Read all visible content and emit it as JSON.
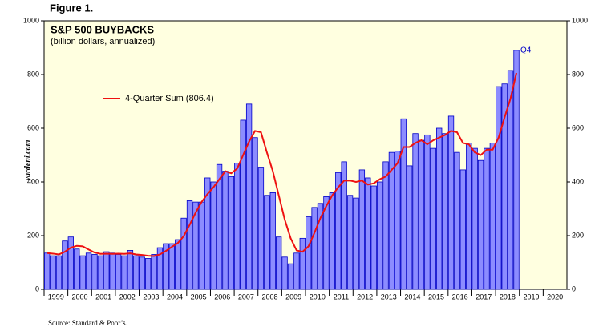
{
  "figure_label": "Figure 1.",
  "source": "Source: Standard & Poor’s.",
  "watermark": "yardeni.com",
  "chart_data": {
    "type": "bar",
    "title": "S&P 500 BUYBACKS",
    "subtitle": "(billion dollars, annualized)",
    "annotation": "Q4",
    "categories": [
      null,
      null,
      null,
      null,
      null,
      null,
      null,
      null,
      null,
      null,
      null,
      null,
      null,
      null,
      null,
      null,
      null,
      null,
      null,
      null,
      null,
      null,
      null,
      null,
      null,
      null,
      null,
      null,
      null,
      null,
      null,
      null,
      null,
      null,
      null,
      null,
      null,
      null,
      null,
      null,
      null,
      null,
      null,
      null,
      null,
      null,
      null,
      null,
      null,
      null,
      null,
      null,
      null,
      null,
      null,
      null,
      null,
      null,
      null,
      null,
      null,
      null,
      null,
      null,
      null,
      null,
      null,
      null,
      null,
      null,
      null,
      null,
      null,
      null,
      null,
      null,
      null,
      null,
      null,
      null
    ],
    "series": [
      {
        "name": null,
        "kind": "bar",
        "color": "#8c8cff",
        "edge": "#0000c8",
        "values": [
          135,
          125,
          125,
          180,
          195,
          150,
          125,
          135,
          130,
          125,
          140,
          135,
          130,
          125,
          145,
          125,
          120,
          115,
          130,
          155,
          170,
          170,
          185,
          265,
          330,
          325,
          325,
          415,
          400,
          465,
          440,
          420,
          470,
          630,
          690,
          565,
          455,
          350,
          360,
          195,
          120,
          95,
          135,
          190,
          270,
          305,
          320,
          345,
          360,
          435,
          475,
          350,
          340,
          445,
          415,
          385,
          400,
          475,
          510,
          515,
          635,
          460,
          580,
          555,
          575,
          525,
          600,
          580,
          645,
          510,
          445,
          545,
          525,
          480,
          525,
          545,
          755,
          765,
          815,
          890
        ]
      },
      {
        "name": "4-Quarter Sum (806.4)",
        "kind": "line",
        "color": "#ee1111",
        "values": [
          135,
          133,
          130,
          140,
          155,
          162,
          160,
          148,
          137,
          132,
          133,
          132,
          133,
          132,
          134,
          130,
          128,
          125,
          124,
          130,
          143,
          158,
          172,
          198,
          240,
          285,
          325,
          355,
          380,
          410,
          440,
          432,
          450,
          500,
          550,
          590,
          585,
          510,
          440,
          350,
          260,
          190,
          145,
          140,
          160,
          210,
          265,
          310,
          350,
          380,
          405,
          405,
          400,
          405,
          390,
          395,
          410,
          420,
          445,
          470,
          530,
          530,
          545,
          555,
          540,
          555,
          565,
          575,
          590,
          585,
          545,
          540,
          510,
          500,
          520,
          520,
          565,
          640,
          710,
          806.4
        ]
      }
    ],
    "ylim": [
      0,
      1000
    ],
    "yticks": [
      0,
      200,
      400,
      600,
      800,
      1000
    ],
    "xlim": [
      1999,
      2021
    ],
    "xticks": [
      1999,
      2000,
      2001,
      2002,
      2003,
      2004,
      2005,
      2006,
      2007,
      2008,
      2009,
      2010,
      2011,
      2012,
      2013,
      2014,
      2015,
      2016,
      2017,
      2018,
      2019,
      2020
    ]
  }
}
